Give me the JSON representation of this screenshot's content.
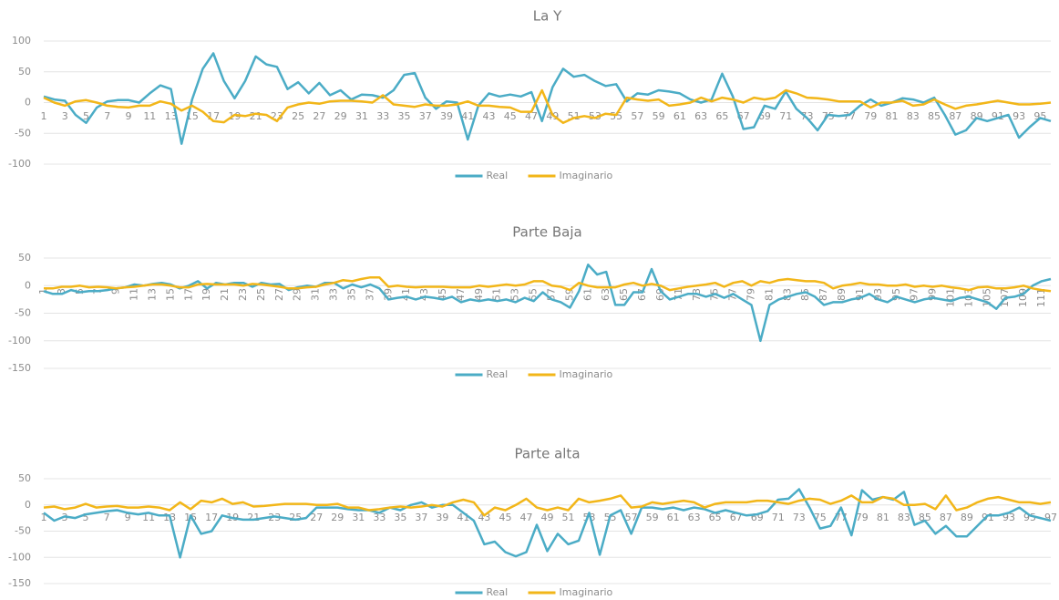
{
  "chart_data": [
    {
      "type": "line",
      "title": "La Y",
      "legend": "bottom",
      "grid": true,
      "categories": [
        1,
        null,
        3,
        null,
        5,
        null,
        7,
        null,
        9,
        null,
        11,
        null,
        13,
        null,
        15,
        null,
        17,
        null,
        19,
        null,
        21,
        null,
        23,
        null,
        25,
        null,
        27,
        null,
        29,
        null,
        31,
        null,
        33,
        null,
        35,
        null,
        37,
        null,
        39,
        null,
        41,
        null,
        43,
        null,
        45,
        null,
        47,
        null,
        49,
        null,
        51,
        null,
        53,
        null,
        55,
        null,
        57,
        null,
        59,
        null,
        61,
        null,
        63,
        null,
        65,
        null,
        67,
        null,
        69,
        null,
        71,
        null,
        73,
        null,
        75,
        null,
        77,
        null,
        79,
        null,
        81,
        null,
        83,
        null,
        85,
        null,
        87,
        null,
        89,
        null,
        91,
        null,
        93,
        null,
        95,
        null
      ],
      "ylim": [
        -100,
        100
      ],
      "yticks": [
        -100,
        -50,
        0,
        50,
        100
      ],
      "series": [
        {
          "name": "Real",
          "color": "#4bacc6",
          "values": [
            10,
            5,
            3,
            -20,
            -33,
            -8,
            2,
            4,
            4,
            0,
            15,
            28,
            22,
            -67,
            5,
            55,
            80,
            35,
            7,
            35,
            75,
            62,
            58,
            22,
            33,
            15,
            32,
            12,
            20,
            5,
            13,
            12,
            8,
            20,
            45,
            48,
            8,
            -10,
            2,
            0,
            -60,
            -5,
            15,
            10,
            13,
            10,
            17,
            -30,
            25,
            55,
            42,
            45,
            35,
            27,
            30,
            2,
            15,
            13,
            20,
            18,
            15,
            5,
            0,
            5,
            47,
            10,
            -43,
            -40,
            -5,
            -10,
            18,
            -10,
            -25,
            -45,
            -20,
            -22,
            -20,
            -5,
            5,
            -5,
            0,
            7,
            5,
            0,
            8,
            -20,
            -52,
            -45,
            -25,
            -30,
            -25,
            -20,
            -57,
            -40,
            -25,
            -30
          ]
        },
        {
          "name": "Imaginario",
          "color": "#f2b619",
          "values": [
            8,
            0,
            -5,
            2,
            4,
            0,
            -5,
            -7,
            -8,
            -5,
            -5,
            2,
            -2,
            -13,
            -5,
            -15,
            -30,
            -32,
            -20,
            -22,
            -18,
            -20,
            -30,
            -8,
            -3,
            0,
            -2,
            2,
            3,
            3,
            2,
            0,
            12,
            -3,
            -5,
            -7,
            -3,
            -5,
            -5,
            -3,
            2,
            -5,
            -5,
            -7,
            -8,
            -15,
            -15,
            20,
            -20,
            -33,
            -25,
            -22,
            -25,
            -18,
            -20,
            8,
            5,
            3,
            5,
            -5,
            -3,
            0,
            8,
            2,
            8,
            5,
            0,
            8,
            5,
            8,
            20,
            15,
            8,
            7,
            5,
            2,
            2,
            2,
            -8,
            0,
            0,
            3,
            -5,
            -3,
            5,
            -3,
            -10,
            -5,
            -3,
            0,
            3,
            0,
            -3,
            -3,
            -2,
            0
          ]
        }
      ]
    },
    {
      "type": "line",
      "title": "Parte Baja",
      "legend": "bottom",
      "grid": true,
      "categories": [
        1,
        null,
        3,
        null,
        5,
        null,
        7,
        null,
        9,
        null,
        11,
        null,
        13,
        null,
        15,
        null,
        17,
        null,
        19,
        null,
        21,
        null,
        23,
        null,
        25,
        null,
        27,
        null,
        29,
        null,
        31,
        null,
        33,
        null,
        35,
        null,
        37,
        null,
        39,
        null,
        41,
        null,
        43,
        null,
        45,
        null,
        47,
        null,
        49,
        null,
        51,
        null,
        53,
        null,
        55,
        null,
        57,
        null,
        59,
        null,
        61,
        null,
        63,
        null,
        65,
        null,
        67,
        null,
        69,
        null,
        71,
        null,
        73,
        null,
        75,
        null,
        77,
        null,
        79,
        null,
        81,
        null,
        83,
        null,
        85,
        null,
        87,
        null,
        89,
        null,
        91,
        null,
        93,
        null,
        95,
        null,
        97,
        null,
        99,
        null,
        101,
        null,
        103,
        null,
        105,
        null,
        107,
        null,
        109,
        null,
        111,
        null
      ],
      "ylim": [
        -150,
        50
      ],
      "yticks": [
        -150,
        -100,
        -50,
        0,
        50
      ],
      "series": [
        {
          "name": "Real",
          "color": "#4bacc6",
          "values": [
            -10,
            -15,
            -15,
            -8,
            -12,
            -10,
            -10,
            -8,
            -5,
            -3,
            2,
            0,
            3,
            5,
            2,
            -5,
            0,
            8,
            -5,
            5,
            2,
            5,
            5,
            -2,
            5,
            2,
            3,
            -8,
            -3,
            0,
            -2,
            5,
            5,
            -5,
            2,
            -3,
            2,
            -5,
            -25,
            -22,
            -20,
            -25,
            -20,
            -22,
            -25,
            -20,
            -30,
            -25,
            -28,
            -25,
            -28,
            -25,
            -30,
            -22,
            -28,
            -12,
            -25,
            -30,
            -40,
            -10,
            38,
            20,
            25,
            -35,
            -35,
            -12,
            -12,
            30,
            -10,
            -25,
            -20,
            -15,
            -15,
            -20,
            -15,
            -22,
            -15,
            -25,
            -35,
            -100,
            -35,
            -25,
            -20,
            -15,
            -12,
            -20,
            -35,
            -30,
            -30,
            -25,
            -22,
            -15,
            -25,
            -30,
            -20,
            -25,
            -30,
            -25,
            -22,
            -25,
            -28,
            -22,
            -20,
            -25,
            -30,
            -42,
            -22,
            -20,
            -15,
            0,
            8,
            12
          ]
        },
        {
          "name": "Imaginario",
          "color": "#f2b619",
          "values": [
            -5,
            -5,
            -2,
            -2,
            0,
            -3,
            -2,
            -3,
            -5,
            -3,
            -2,
            0,
            2,
            2,
            0,
            -3,
            -3,
            2,
            3,
            2,
            2,
            2,
            0,
            3,
            2,
            0,
            -2,
            -5,
            -5,
            -3,
            -2,
            2,
            5,
            10,
            8,
            12,
            15,
            15,
            -2,
            0,
            -2,
            -3,
            -2,
            -2,
            -2,
            -3,
            -3,
            -3,
            0,
            -2,
            0,
            2,
            0,
            2,
            8,
            8,
            0,
            -2,
            -8,
            5,
            0,
            -3,
            -3,
            -3,
            2,
            5,
            0,
            3,
            0,
            -8,
            -5,
            -2,
            0,
            2,
            5,
            -2,
            5,
            8,
            0,
            8,
            5,
            10,
            12,
            10,
            8,
            8,
            5,
            -5,
            0,
            2,
            5,
            2,
            2,
            0,
            0,
            2,
            -2,
            0,
            -2,
            0,
            -3,
            -5,
            -8,
            -3,
            -2,
            -5,
            -5,
            -3,
            0,
            -5,
            -8,
            -10
          ]
        }
      ]
    },
    {
      "type": "line",
      "title": "Parte alta",
      "legend": "bottom",
      "grid": true,
      "categories": [
        1,
        null,
        3,
        null,
        5,
        null,
        7,
        null,
        9,
        null,
        11,
        null,
        13,
        null,
        15,
        null,
        17,
        null,
        19,
        null,
        21,
        null,
        23,
        null,
        25,
        null,
        27,
        null,
        29,
        null,
        31,
        null,
        33,
        null,
        35,
        null,
        37,
        null,
        39,
        null,
        41,
        null,
        43,
        null,
        45,
        null,
        47,
        null,
        49,
        null,
        51,
        null,
        53,
        null,
        55,
        null,
        57,
        null,
        59,
        null,
        61,
        null,
        63,
        null,
        65,
        null,
        67,
        null,
        69,
        null,
        71,
        null,
        73,
        null,
        75,
        null,
        77,
        null,
        79,
        null,
        81,
        null,
        83,
        null,
        85,
        null,
        87,
        null,
        89,
        null,
        91,
        null,
        93,
        null,
        95,
        null,
        97
      ],
      "ylim": [
        -150,
        50
      ],
      "yticks": [
        -150,
        -100,
        -50,
        0,
        50
      ],
      "series": [
        {
          "name": "Real",
          "color": "#4bacc6",
          "values": [
            -15,
            -30,
            -22,
            -25,
            -18,
            -15,
            -12,
            -10,
            -15,
            -18,
            -15,
            -20,
            -20,
            -100,
            -20,
            -55,
            -50,
            -20,
            -25,
            -28,
            -28,
            -25,
            -22,
            -25,
            -28,
            -25,
            -5,
            -5,
            -5,
            -8,
            -10,
            -10,
            -15,
            -5,
            -10,
            0,
            5,
            -5,
            0,
            0,
            -15,
            -30,
            -75,
            -70,
            -90,
            -98,
            -90,
            -38,
            -88,
            -55,
            -75,
            -68,
            -15,
            -95,
            -20,
            -10,
            -55,
            -5,
            -5,
            -8,
            -5,
            -10,
            -5,
            -8,
            -15,
            -10,
            -15,
            -20,
            -18,
            -12,
            10,
            12,
            30,
            -5,
            -45,
            -40,
            -5,
            -58,
            28,
            10,
            15,
            10,
            25,
            -38,
            -30,
            -55,
            -40,
            -60,
            -60,
            -40,
            -20,
            -20,
            -15,
            -5,
            -20,
            -25,
            -30
          ]
        },
        {
          "name": "Imaginario",
          "color": "#f2b619",
          "values": [
            -5,
            -3,
            -8,
            -5,
            2,
            -5,
            -3,
            -2,
            -5,
            -5,
            -3,
            -5,
            -10,
            5,
            -8,
            8,
            5,
            12,
            2,
            5,
            -3,
            -2,
            0,
            2,
            2,
            2,
            0,
            0,
            2,
            -5,
            -5,
            -10,
            -8,
            -5,
            -3,
            -5,
            -3,
            0,
            -3,
            5,
            10,
            5,
            -20,
            -5,
            -10,
            0,
            12,
            -5,
            -10,
            -5,
            -10,
            12,
            5,
            8,
            12,
            18,
            -5,
            -3,
            5,
            2,
            5,
            8,
            5,
            -5,
            2,
            5,
            5,
            5,
            8,
            8,
            5,
            2,
            8,
            12,
            10,
            2,
            8,
            18,
            5,
            5,
            15,
            12,
            0,
            0,
            2,
            -8,
            18,
            -10,
            -5,
            5,
            12,
            15,
            10,
            5,
            5,
            2,
            5
          ]
        }
      ]
    }
  ]
}
